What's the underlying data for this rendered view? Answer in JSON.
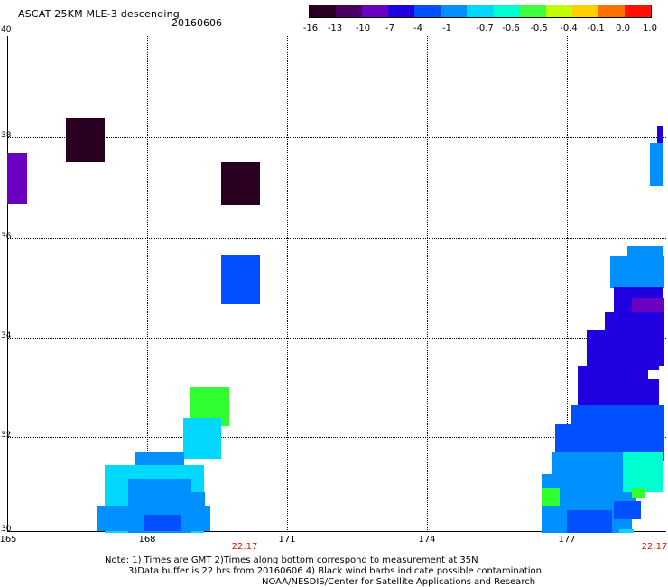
{
  "title": "ASCAT 25KM MLE-3 descending",
  "date": "20160606",
  "colorbar": {
    "ticks": [
      "-16",
      "-13",
      "-10",
      "-7",
      "-4",
      "-1",
      "-0.7",
      "-0.6",
      "-0.5",
      "-0.4",
      "-0.1",
      "0.0",
      "1.0"
    ],
    "colors": [
      "#2a0020",
      "#4a0060",
      "#6a00c0",
      "#2000e0",
      "#0050ff",
      "#0090ff",
      "#00d8ff",
      "#00ffd0",
      "#40ff40",
      "#c0ff00",
      "#ffd000",
      "#ff7000",
      "#ff1000"
    ]
  },
  "axes": {
    "lat_labels": [
      "40",
      "38",
      "36",
      "34",
      "32",
      "30"
    ],
    "lon_labels": [
      "165",
      "168",
      "171",
      "174",
      "177"
    ]
  },
  "times": [
    "22:17",
    "22:17"
  ],
  "notes": [
    "Note: 1) Times are GMT 2)Times along bottom correspond to measurement at 35N",
    "3)Data buffer is 22 hrs from 20160606 4) Black wind barbs indicate possible contamination",
    "NOAA/NESDIS/Center for Satellite Applications and Research"
  ]
}
